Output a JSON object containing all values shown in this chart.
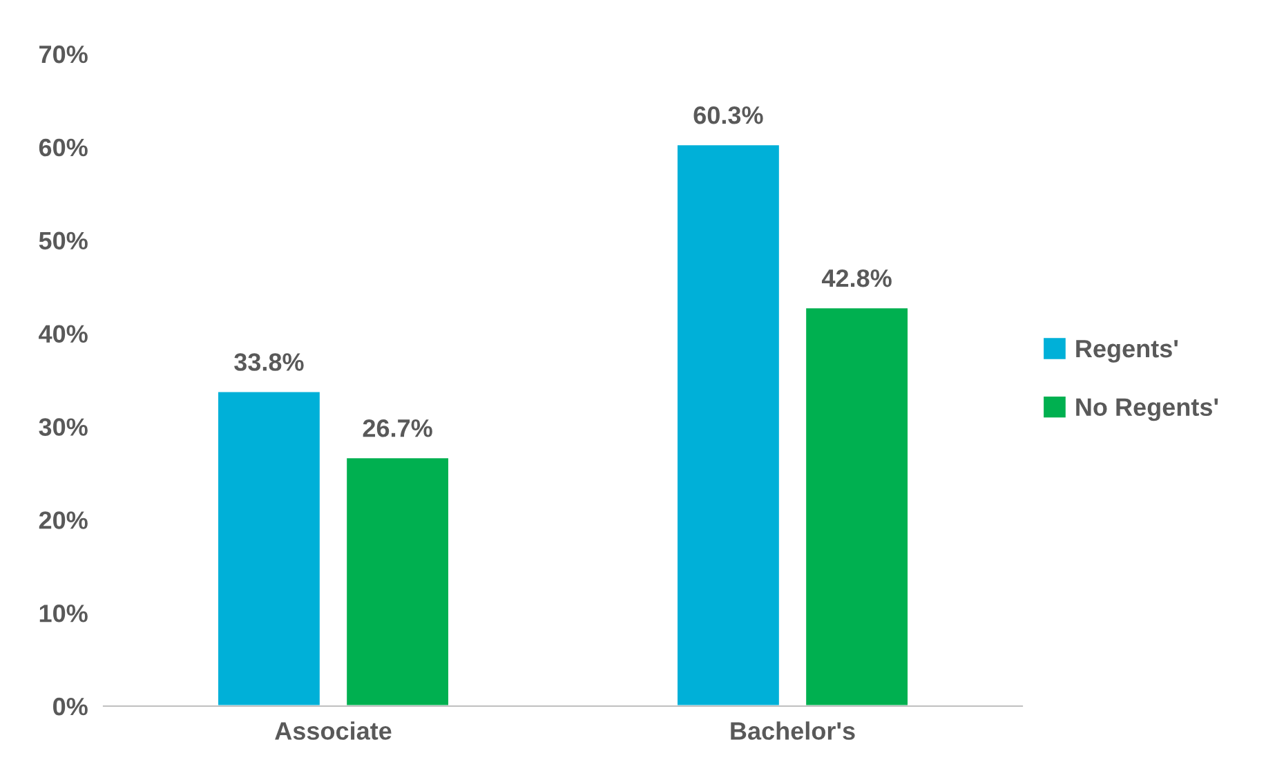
{
  "chart_data": {
    "type": "bar",
    "categories": [
      "Associate",
      "Bachelor's"
    ],
    "series": [
      {
        "name": "Regents'",
        "color": "#00b0d8",
        "values": [
          33.8,
          60.3
        ],
        "value_labels": [
          "33.8%",
          "60.3%"
        ]
      },
      {
        "name": "No Regents'",
        "color": "#00b050",
        "values": [
          26.7,
          42.8
        ],
        "value_labels": [
          "26.7%",
          "42.8%"
        ]
      }
    ],
    "ylim": [
      0,
      70
    ],
    "yticks": [
      {
        "value": 0,
        "label": "0%"
      },
      {
        "value": 10,
        "label": "10%"
      },
      {
        "value": 20,
        "label": "20%"
      },
      {
        "value": 30,
        "label": "30%"
      },
      {
        "value": 40,
        "label": "40%"
      },
      {
        "value": 50,
        "label": "50%"
      },
      {
        "value": 60,
        "label": "60%"
      },
      {
        "value": 70,
        "label": "70%"
      }
    ],
    "grid": false,
    "legend": "right"
  }
}
